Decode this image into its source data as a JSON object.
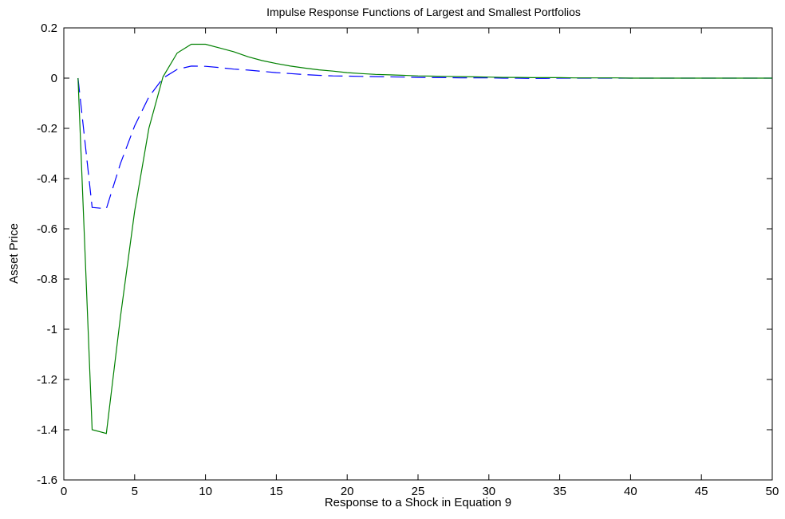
{
  "chart_data": {
    "type": "line",
    "title": "Impulse Response Functions of Largest and Smallest Portfolios",
    "xlabel": "Response to a Shock in Equation 9",
    "ylabel": "Asset Price",
    "xlim": [
      0,
      50
    ],
    "ylim": [
      -1.6,
      0.2
    ],
    "xticks": [
      "0",
      "5",
      "10",
      "15",
      "20",
      "25",
      "30",
      "35",
      "40",
      "45",
      "50"
    ],
    "yticks": [
      "0.2",
      "0",
      "-0.2",
      "-0.4",
      "-0.6",
      "-0.8",
      "-1",
      "-1.2",
      "-1.4",
      "-1.6"
    ],
    "grid": false,
    "legend": "none",
    "series": [
      {
        "color": "#0000ff",
        "style": "dashed",
        "x": [
          1,
          2,
          3,
          4,
          5,
          6,
          7,
          8,
          9,
          10,
          11,
          12,
          13,
          14,
          15,
          16,
          17,
          18,
          19,
          20,
          21,
          22,
          23,
          24,
          25,
          26,
          27,
          28,
          29,
          30,
          31,
          32,
          33,
          34,
          35,
          36,
          37,
          38,
          39,
          40,
          41,
          42,
          43,
          44,
          45,
          46,
          47,
          48,
          49,
          50
        ],
        "values": [
          0,
          -0.515,
          -0.52,
          -0.34,
          -0.19,
          -0.075,
          0.0,
          0.035,
          0.048,
          0.047,
          0.042,
          0.036,
          0.032,
          0.027,
          0.022,
          0.018,
          0.014,
          0.011,
          0.009,
          0.008,
          0.007,
          0.006,
          0.005,
          0.004,
          0.003,
          0.002,
          0.002,
          0.001,
          0.001,
          0.001,
          0.0,
          0.0,
          -0.001,
          -0.001,
          0.0,
          0.0,
          0.0,
          0.0,
          0.0,
          0.0,
          0.0,
          0.0,
          0.0,
          0.0,
          0.0,
          0.0,
          0.0,
          0.0,
          0.0,
          0.0
        ]
      },
      {
        "color": "#008000",
        "style": "solid",
        "x": [
          1,
          2,
          3,
          4,
          5,
          6,
          7,
          8,
          9,
          10,
          11,
          12,
          13,
          14,
          15,
          16,
          17,
          18,
          19,
          20,
          21,
          22,
          23,
          24,
          25,
          26,
          27,
          28,
          29,
          30,
          31,
          32,
          33,
          34,
          35,
          36,
          37,
          38,
          39,
          40,
          41,
          42,
          43,
          44,
          45,
          46,
          47,
          48,
          49,
          50
        ],
        "values": [
          0,
          -1.4,
          -1.415,
          -0.95,
          -0.53,
          -0.2,
          0.005,
          0.1,
          0.135,
          0.135,
          0.12,
          0.105,
          0.085,
          0.07,
          0.058,
          0.048,
          0.04,
          0.033,
          0.028,
          0.022,
          0.018,
          0.015,
          0.013,
          0.011,
          0.009,
          0.008,
          0.007,
          0.006,
          0.005,
          0.004,
          0.003,
          0.003,
          0.002,
          0.002,
          0.002,
          0.001,
          0.001,
          0.001,
          0.001,
          0.0,
          0.0,
          0.0,
          0.0,
          0.0,
          0.0,
          0.0,
          0.0,
          0.0,
          0.0,
          0.0
        ]
      }
    ]
  }
}
